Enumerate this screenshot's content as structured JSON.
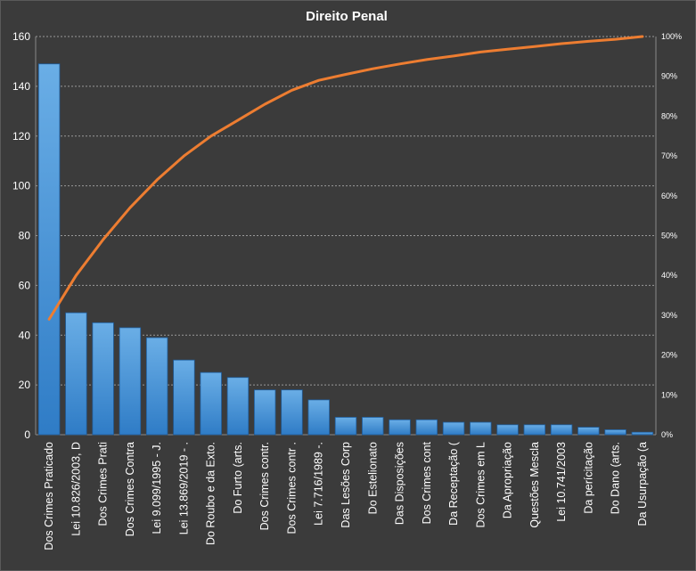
{
  "chart_data": {
    "type": "bar",
    "title": "Direito  Penal",
    "categories": [
      "Dos Crimes Praticado",
      "Lei 10.826/2003, D",
      "Dos Crimes Prati",
      "Dos Crimes Contra",
      "Lei 9.099/1995 - J.",
      "Lei 13.869/2019 - .",
      "Do Roubo e da Exto.",
      "Do Furto (arts.",
      "Dos Crimes contr.",
      "Dos Crimes contr .",
      "Lei 7.716/1989 -.",
      "Das Lesões Corp",
      "Do Estelionato",
      "Das Disposições",
      "Dos Crimes cont",
      "Da Receptação (",
      "Dos Crimes em L",
      "Da Apropriação",
      "Questões Mescla",
      "Lei 10.741/2003",
      "Da perícitação",
      "Do Dano (arts.",
      "Da Usurpação (a"
    ],
    "series": [
      {
        "type": "bar",
        "axis": "left",
        "values": [
          149,
          49,
          45,
          43,
          39,
          30,
          25,
          23,
          18,
          18,
          14,
          7,
          7,
          6,
          6,
          5,
          5,
          4,
          4,
          4,
          3,
          2,
          1
        ]
      },
      {
        "type": "line",
        "axis": "right",
        "values": [
          0.29,
          0.4,
          0.49,
          0.57,
          0.64,
          0.7,
          0.75,
          0.79,
          0.83,
          0.865,
          0.89,
          0.905,
          0.919,
          0.931,
          0.942,
          0.951,
          0.961,
          0.968,
          0.975,
          0.982,
          0.988,
          0.993,
          1.0
        ]
      }
    ],
    "y_left": {
      "min": 0,
      "max": 160,
      "ticks": [
        0,
        20,
        40,
        60,
        80,
        100,
        120,
        140,
        160
      ]
    },
    "y_right": {
      "min": 0,
      "max": 1,
      "ticks": [
        "0%",
        "10%",
        "20%",
        "30%",
        "40%",
        "50%",
        "60%",
        "70%",
        "80%",
        "90%",
        "100%"
      ]
    },
    "grid": true,
    "legend": "none",
    "colors": {
      "background": "#3b3b3b",
      "bar_fill_top": "#6aaee6",
      "bar_fill_bottom": "#2f7cc6",
      "bar_stroke": "#1f5e9e",
      "line": "#ed7d31",
      "text": "#ffffff"
    }
  }
}
